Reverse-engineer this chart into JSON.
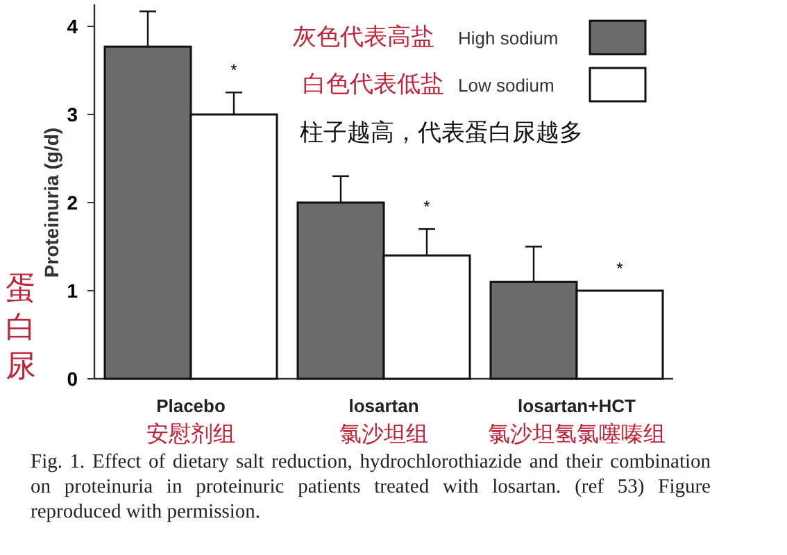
{
  "chart_data": {
    "type": "bar",
    "ylabel": "Proteinuria (g/d)",
    "categories": [
      "Placebo",
      "losartan",
      "losartan+HCT"
    ],
    "series": [
      {
        "name": "High sodium",
        "color": "#6b6b6b",
        "values": [
          3.77,
          2.0,
          1.1
        ],
        "errors": [
          0.4,
          0.3,
          0.4
        ]
      },
      {
        "name": "Low sodium",
        "color": "#ffffff",
        "values": [
          3.0,
          1.4,
          1.0
        ],
        "errors": [
          0.25,
          0.3,
          null
        ]
      }
    ],
    "ylim": [
      0,
      4.25
    ],
    "yticks": [
      0,
      1,
      2,
      3,
      4
    ],
    "grid": false,
    "legend": "top right",
    "annotations": [
      {
        "text": "*",
        "x": "Placebo",
        "y": 3.25
      },
      {
        "text": "*",
        "x": "losartan",
        "y": 1.7
      },
      {
        "text": "*",
        "x": "losartan+HCT",
        "y": 1.0
      },
      "灰色代表高盐",
      "白色代表低盐",
      "柱子越高，代表蛋白尿越多",
      "蛋白尿",
      "安慰剂组",
      "氯沙坦组",
      "氯沙坦氢氯噻嗪组",
      "Fig. 1. Effect of dietary salt reduction, hydrochlorothiazide and their combination on proteinuria in proteinuric patients treated with losartan. (ref 53) Figure reproduced with permission."
    ]
  }
}
